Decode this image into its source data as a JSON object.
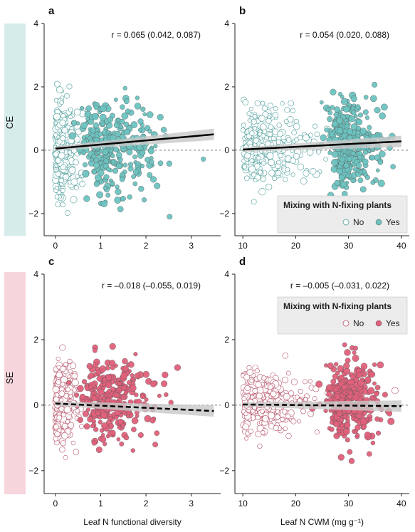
{
  "rows": [
    {
      "label": "CE",
      "color": "#d5ecea"
    },
    {
      "label": "SE",
      "color": "#f6d5dc"
    }
  ],
  "legend": {
    "title": "Mixing with N-fixing plants",
    "no": "No",
    "yes": "Yes"
  },
  "colors": {
    "ce_fill": "#6cc3c0",
    "se_fill": "#e0607a",
    "open_fill": "#ffffff",
    "trend": "#000000",
    "band": "#c8c8c8"
  },
  "chart_data": [
    {
      "type": "scatter",
      "panel": "a",
      "row": "CE",
      "stat": "r = 0.065 (0.042, 0.087)",
      "xlabel": "",
      "ylabel": "",
      "xlim": [
        -0.25,
        3.65
      ],
      "ylim": [
        -2.7,
        4
      ],
      "xticks": [
        0,
        1,
        2,
        3
      ],
      "yticks": [
        -2,
        0,
        2,
        4
      ],
      "trend": {
        "x": [
          0,
          3.5
        ],
        "y": [
          0.05,
          0.5
        ],
        "style": "solid"
      },
      "series": [
        {
          "name": "No",
          "center_x": 0.15,
          "spread_x": 0.2,
          "min_x": 0,
          "max_x": 0.9,
          "y_sd": 0.75,
          "count": 360
        },
        {
          "name": "Yes",
          "center_x": 1.2,
          "spread_x": 0.55,
          "min_x": 0.3,
          "max_x": 3.5,
          "y_sd": 0.75,
          "count": 300
        }
      ]
    },
    {
      "type": "scatter",
      "panel": "b",
      "row": "CE",
      "stat": "r = 0.054 (0.020, 0.088)",
      "xlabel": "",
      "ylabel": "",
      "xlim": [
        8.5,
        41.5
      ],
      "ylim": [
        -2.7,
        4
      ],
      "xticks": [
        10,
        20,
        30,
        40
      ],
      "yticks": [
        -2,
        0,
        2,
        4
      ],
      "trend": {
        "x": [
          10,
          40
        ],
        "y": [
          0.02,
          0.28
        ],
        "style": "solid"
      },
      "series": [
        {
          "name": "No",
          "center_x": 22,
          "spread_x": 6,
          "min_x": 10,
          "max_x": 40,
          "y_sd": 0.55,
          "count": 300
        },
        {
          "name": "Yes",
          "center_x": 30,
          "spread_x": 3.2,
          "min_x": 22,
          "max_x": 40,
          "y_sd": 0.7,
          "count": 340
        }
      ],
      "legend": true,
      "legend_position": "bottom-right"
    },
    {
      "type": "scatter",
      "panel": "c",
      "row": "SE",
      "stat": "r = –0.018 (–0.055, 0.019)",
      "xlabel": "Leaf N functional diversity",
      "ylabel": "",
      "xlim": [
        -0.25,
        3.65
      ],
      "ylim": [
        -2.7,
        4
      ],
      "xticks": [
        0,
        1,
        2,
        3
      ],
      "yticks": [
        -2,
        0,
        2,
        4
      ],
      "trend": {
        "x": [
          0,
          3.5
        ],
        "y": [
          0.05,
          -0.18
        ],
        "style": "dashed"
      },
      "series": [
        {
          "name": "No",
          "center_x": 0.15,
          "spread_x": 0.2,
          "min_x": 0,
          "max_x": 0.9,
          "y_sd": 0.55,
          "count": 340
        },
        {
          "name": "Yes",
          "center_x": 1.2,
          "spread_x": 0.55,
          "min_x": 0.3,
          "max_x": 3.5,
          "y_sd": 0.6,
          "count": 300
        }
      ]
    },
    {
      "type": "scatter",
      "panel": "d",
      "row": "SE",
      "stat": "r = –0.005 (–0.031, 0.022)",
      "xlabel": "Leaf N CWM (mg g⁻¹)",
      "ylabel": "",
      "xlim": [
        8.5,
        41.5
      ],
      "ylim": [
        -2.7,
        4
      ],
      "xticks": [
        10,
        20,
        30,
        40
      ],
      "yticks": [
        -2,
        0,
        2,
        4
      ],
      "trend": {
        "x": [
          10,
          40
        ],
        "y": [
          0.02,
          -0.03
        ],
        "style": "dashed"
      },
      "series": [
        {
          "name": "No",
          "center_x": 22,
          "spread_x": 6,
          "min_x": 10,
          "max_x": 40,
          "y_sd": 0.45,
          "count": 300
        },
        {
          "name": "Yes",
          "center_x": 30,
          "spread_x": 3.2,
          "min_x": 22,
          "max_x": 40,
          "y_sd": 0.6,
          "count": 340
        }
      ],
      "legend": true,
      "legend_position": "top-right"
    }
  ]
}
